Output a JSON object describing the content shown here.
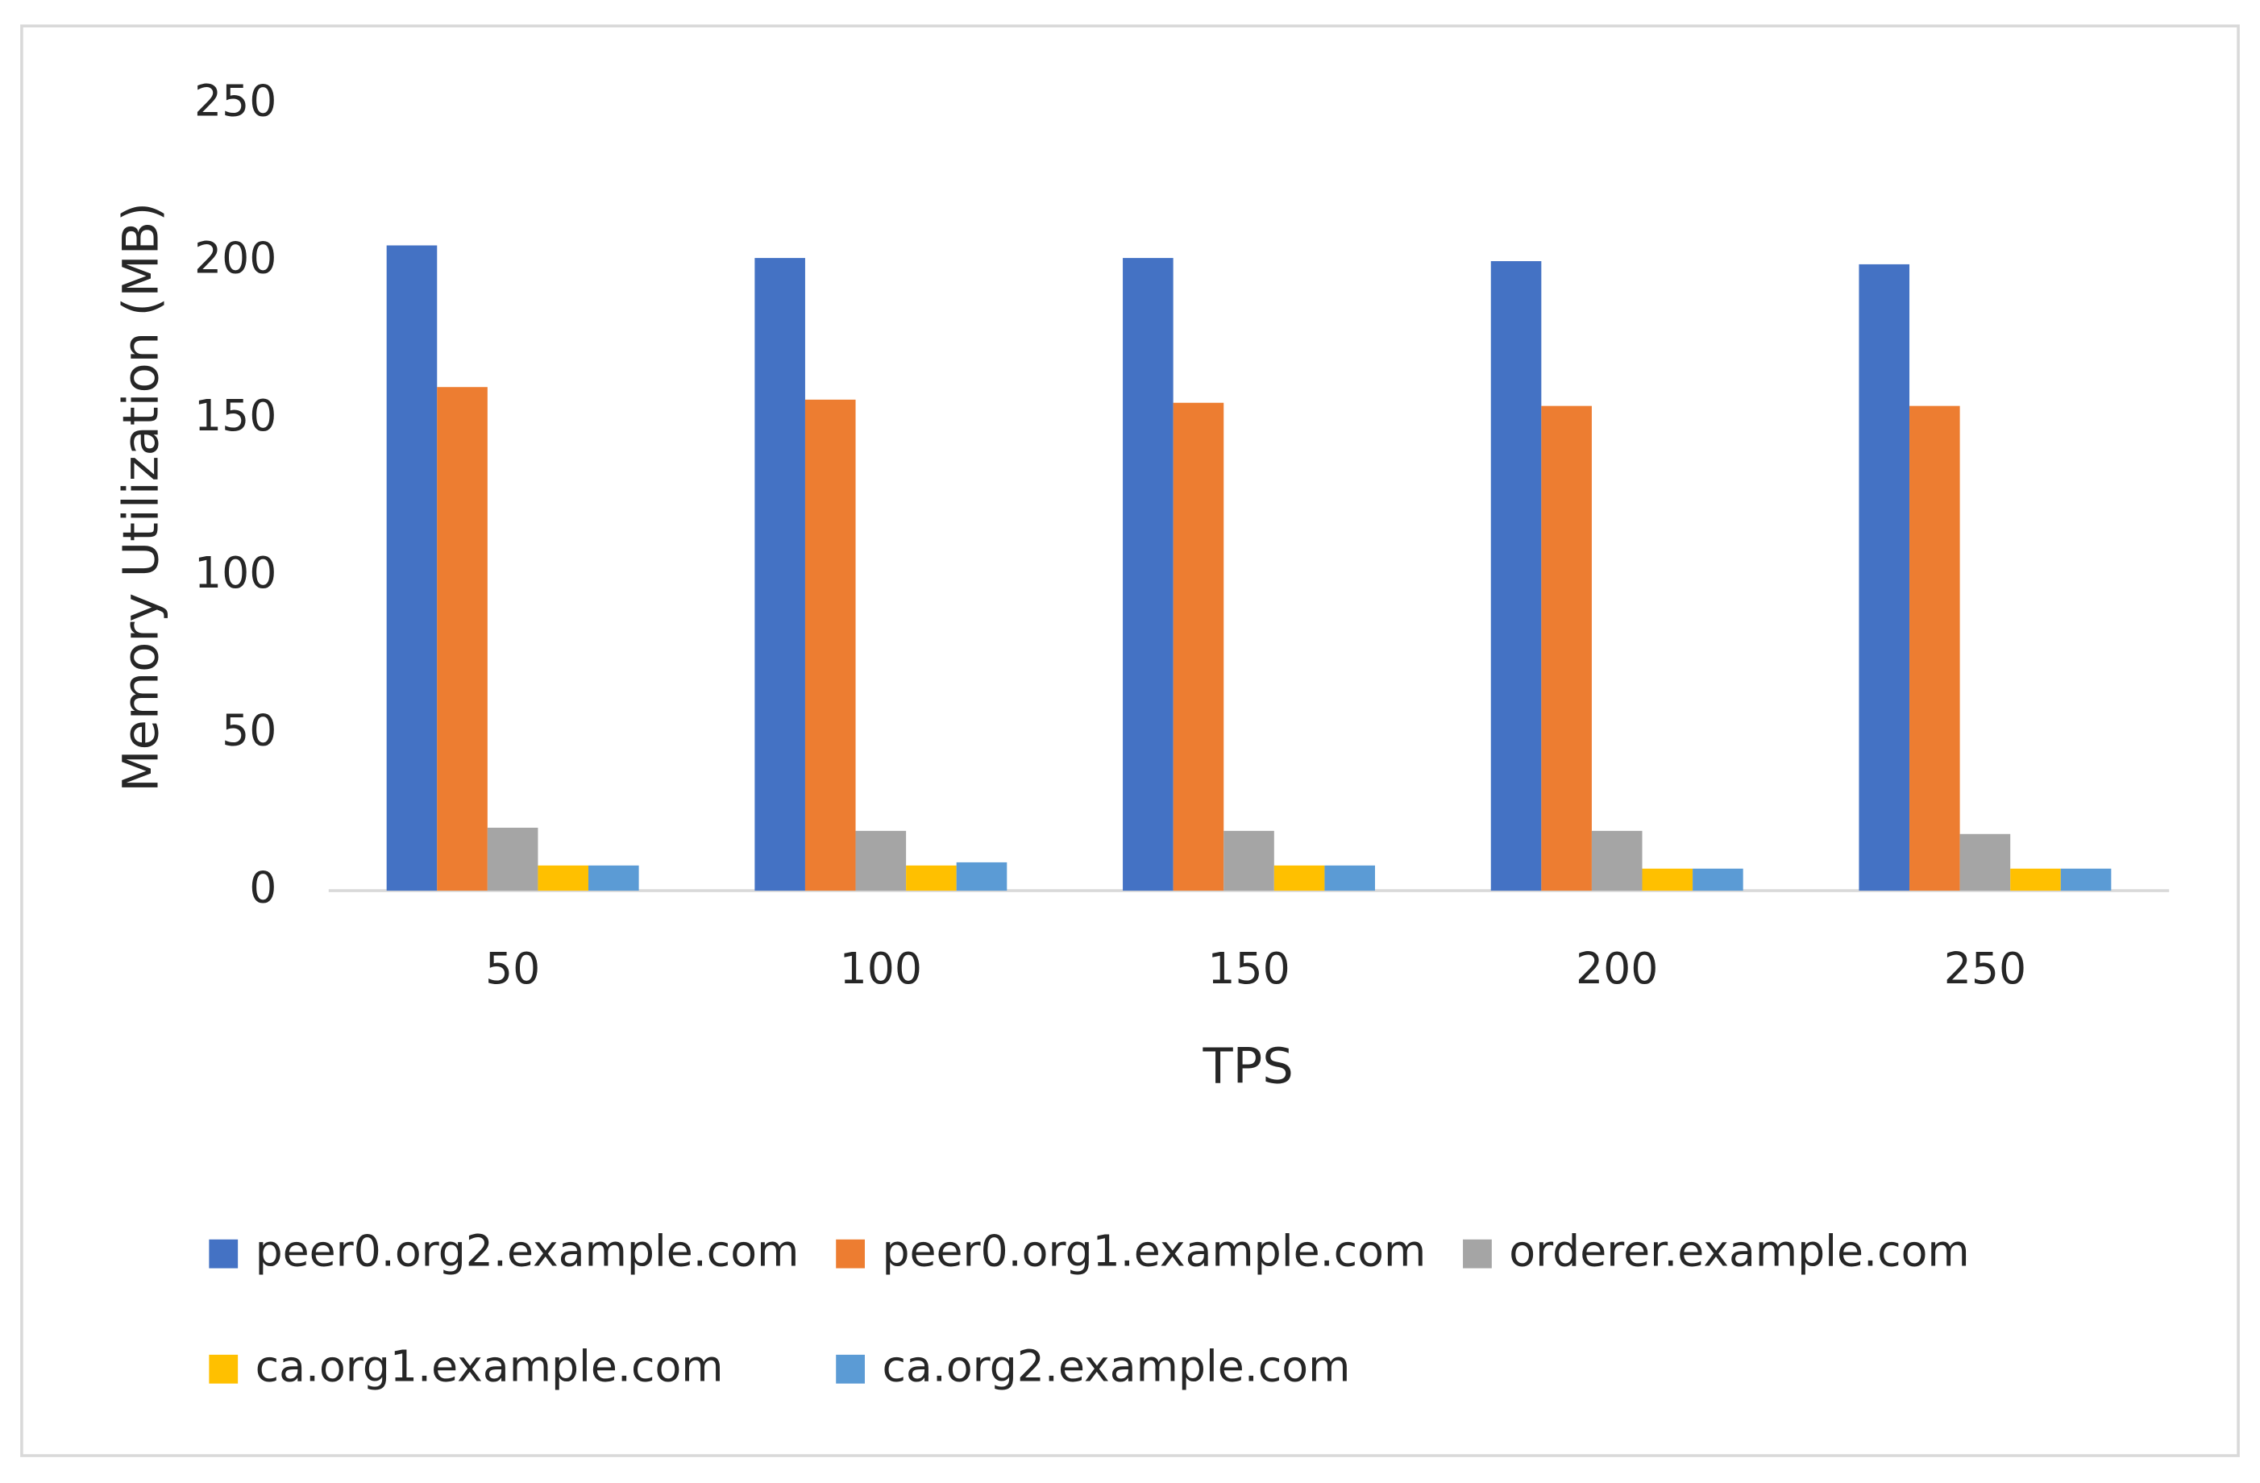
{
  "chart_data": {
    "type": "bar",
    "x_label": "TPS",
    "y_label": "Memory Utilization (MB)",
    "categories": [
      "50",
      "100",
      "150",
      "200",
      "250"
    ],
    "series": [
      {
        "name": "peer0.org2.example.com",
        "color": "#4472c4",
        "values": [
          205,
          201,
          201,
          200,
          199
        ]
      },
      {
        "name": "peer0.org1.example.com",
        "color": "#ed7d31",
        "values": [
          160,
          156,
          155,
          154,
          154
        ]
      },
      {
        "name": "orderer.example.com",
        "color": "#a5a5a5",
        "values": [
          20,
          19,
          19,
          19,
          18
        ]
      },
      {
        "name": "ca.org1.example.com",
        "color": "#ffc000",
        "values": [
          8,
          8,
          8,
          7,
          7
        ]
      },
      {
        "name": "ca.org2.example.com",
        "color": "#5b9bd5",
        "values": [
          8,
          9,
          8,
          7,
          7
        ]
      }
    ],
    "ylim": [
      0,
      250
    ],
    "yticks": [
      0,
      50,
      100,
      150,
      200,
      250
    ],
    "grid": false,
    "legend": "bottom"
  }
}
